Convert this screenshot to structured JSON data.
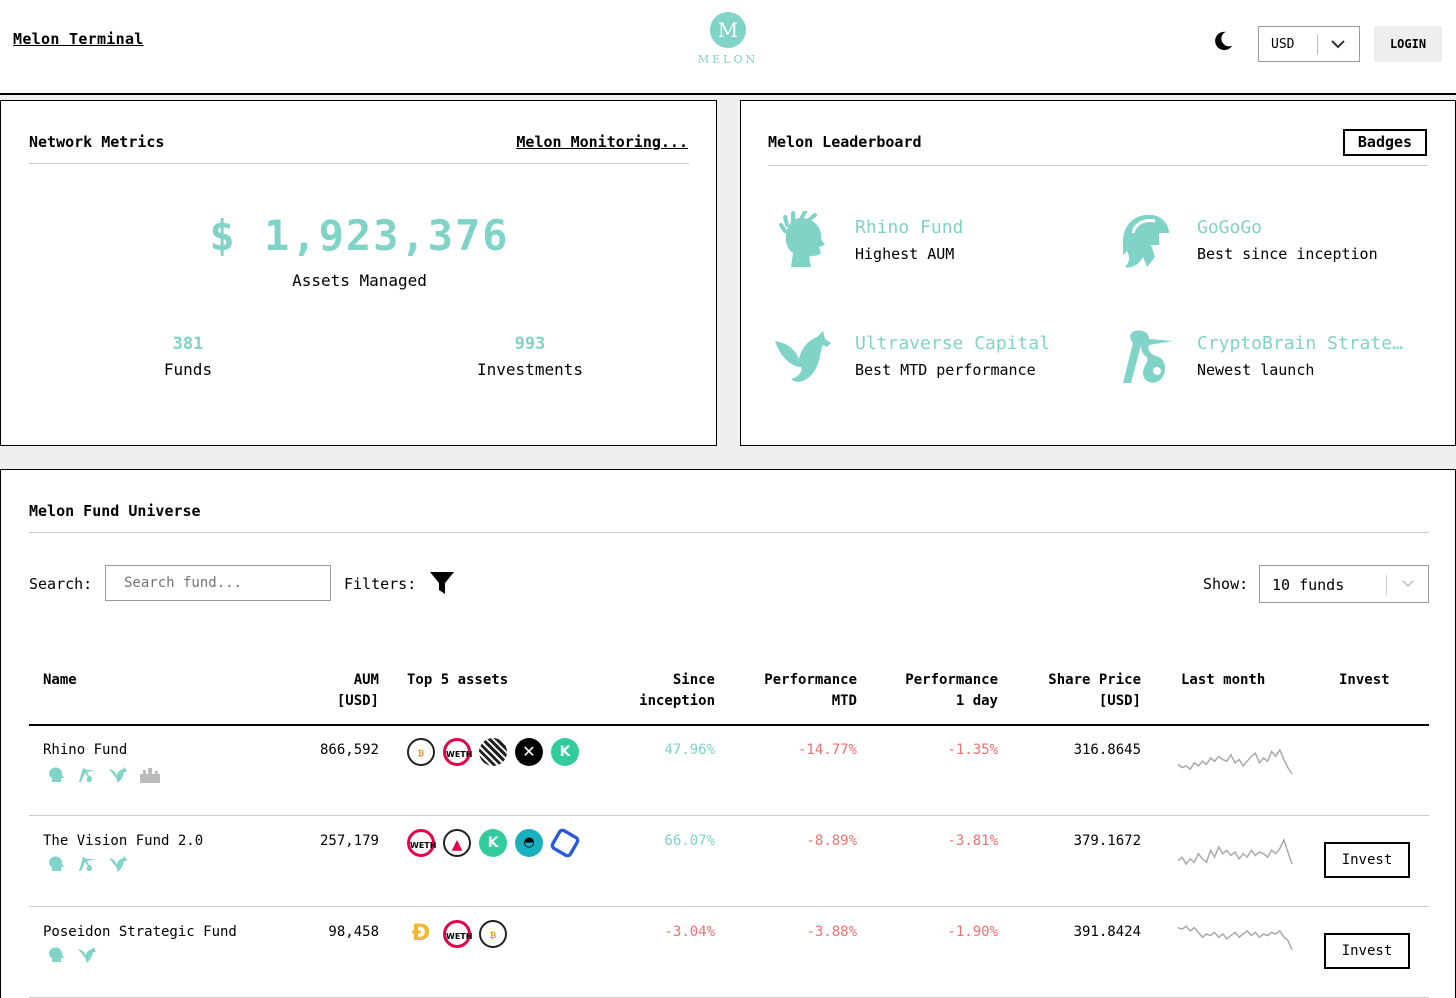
{
  "header": {
    "title": "Melon Terminal",
    "logo_letter": "M",
    "logo_text": "MELON",
    "currency": "USD",
    "login_label": "LOGIN"
  },
  "metrics": {
    "title": "Network Metrics",
    "monitoring_link": "Melon Monitoring...",
    "aum_value": "$ 1,923,376",
    "aum_label": "Assets Managed",
    "funds_count": "381",
    "funds_label": "Funds",
    "investments_count": "993",
    "investments_label": "Investments"
  },
  "leaderboard": {
    "title": "Melon Leaderboard",
    "badges_label": "Badges",
    "items": [
      {
        "name": "Rhino Fund",
        "desc": "Highest AUM",
        "icon": "laurel-head-icon"
      },
      {
        "name": "GoGoGo",
        "desc": "Best since inception",
        "icon": "spartan-helmet-icon"
      },
      {
        "name": "Ultraverse Capital",
        "desc": "Best MTD performance",
        "icon": "pegasus-icon"
      },
      {
        "name": "CryptoBrain Strate…",
        "desc": "Newest launch",
        "icon": "stork-bundle-icon"
      }
    ]
  },
  "universe": {
    "title": "Melon Fund Universe",
    "search_label": "Search:",
    "search_placeholder": "Search fund...",
    "filters_label": "Filters:",
    "show_label": "Show:",
    "show_value": "10 funds",
    "columns": {
      "name": "Name",
      "aum_1": "AUM",
      "aum_2": "[USD]",
      "assets": "Top 5 assets",
      "since_1": "Since",
      "since_2": "inception",
      "mtd_1": "Performance",
      "mtd_2": "MTD",
      "day_1": "Performance",
      "day_2": "1 day",
      "price_1": "Share Price",
      "price_2": "[USD]",
      "last_month": "Last month",
      "invest": "Invest"
    },
    "rows": [
      {
        "name": "Rhino Fund",
        "aum": "866,592",
        "since": "47.96%",
        "mtd": "-14.77%",
        "day": "-1.35%",
        "price": "316.8645",
        "invest_label": "",
        "badges": [
          "laurel-head-icon",
          "stork-bundle-icon",
          "pegasus-icon",
          "city-icon"
        ],
        "assets": [
          "BTC",
          "WETH",
          "STRIPE",
          "0X",
          "KNC"
        ],
        "spark": [
          10,
          8,
          9,
          7,
          11,
          9,
          12,
          10,
          14,
          12,
          15,
          13,
          12,
          16,
          11,
          13,
          9,
          12,
          15,
          17,
          11,
          14,
          12,
          18,
          15,
          19,
          13,
          8,
          4
        ]
      },
      {
        "name": "The Vision Fund 2.0",
        "aum": "257,179",
        "since": "66.07%",
        "mtd": "-8.89%",
        "day": "-3.81%",
        "price": "379.1672",
        "invest_label": "Invest",
        "badges": [
          "laurel-head-icon",
          "stork-bundle-icon",
          "pegasus-icon"
        ],
        "assets": [
          "WETH",
          "REN",
          "KNC",
          "ANT",
          "LINK"
        ],
        "spark": [
          8,
          10,
          6,
          9,
          7,
          12,
          9,
          7,
          14,
          10,
          16,
          12,
          14,
          11,
          13,
          9,
          12,
          10,
          14,
          11,
          13,
          12,
          10,
          14,
          12,
          15,
          20,
          13,
          6
        ]
      },
      {
        "name": "Poseidon Strategic Fund",
        "aum": "98,458",
        "since": "-3.04%",
        "mtd": "-3.88%",
        "day": "-1.90%",
        "price": "391.8424",
        "invest_label": "Invest",
        "badges": [
          "laurel-head-icon",
          "pegasus-icon"
        ],
        "assets": [
          "DAI",
          "WETH",
          "BTC"
        ],
        "spark": [
          16,
          15,
          17,
          14,
          16,
          13,
          10,
          12,
          11,
          13,
          10,
          12,
          9,
          11,
          13,
          10,
          12,
          14,
          11,
          13,
          10,
          12,
          11,
          13,
          12,
          14,
          10,
          8,
          2
        ]
      }
    ]
  },
  "colors": {
    "accent": "#7fd3c7",
    "negative": "#f07070",
    "spark": "#aaaaaa"
  }
}
